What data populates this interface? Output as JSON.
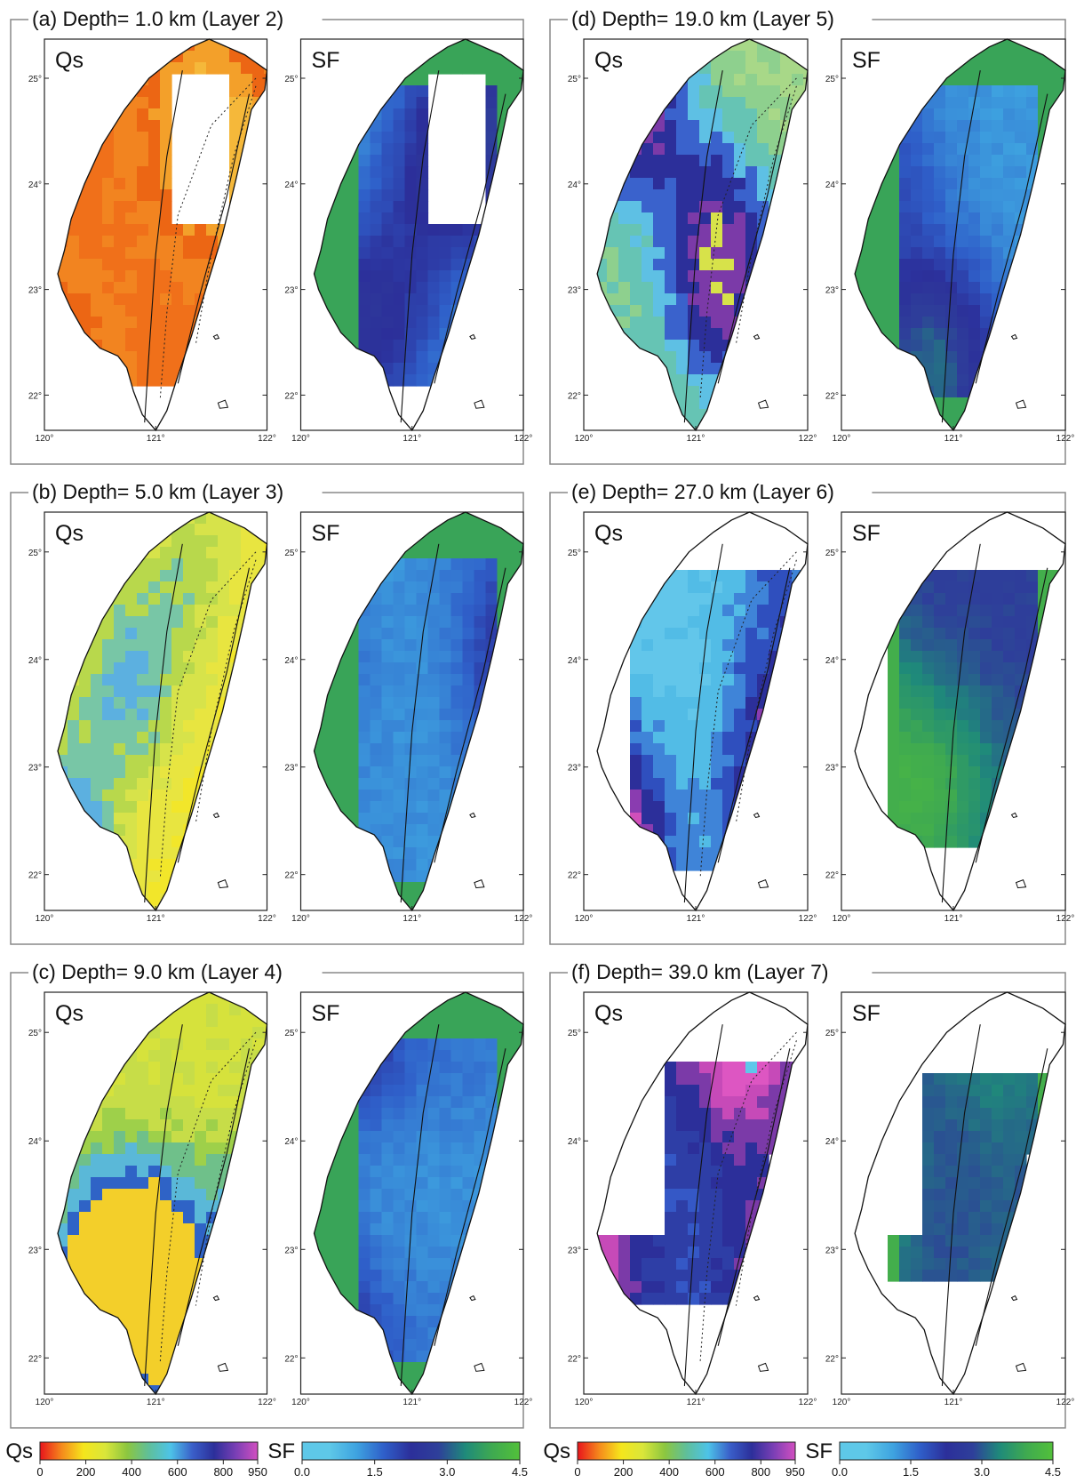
{
  "panels": [
    {
      "id": "a",
      "title": "(a) Depth= 1.0 km (Layer 2)",
      "qs_theme": "orange",
      "sf_theme": "a",
      "qs_label": "Qs",
      "sf_label": "SF",
      "lon_ticks": [
        "120°",
        "121°",
        "122°"
      ],
      "lat_ticks": [
        "25°",
        "24°",
        "23°",
        "22°"
      ]
    },
    {
      "id": "b",
      "title": "(b) Depth= 5.0 km (Layer 3)",
      "qs_theme": "yellow",
      "sf_theme": "b",
      "qs_label": "Qs",
      "sf_label": "SF",
      "lon_ticks": [
        "120°",
        "121°",
        "122°"
      ],
      "lat_ticks": [
        "25°",
        "24°",
        "23°",
        "22°"
      ]
    },
    {
      "id": "c",
      "title": "(c) Depth= 9.0 km (Layer 4)",
      "qs_theme": "green",
      "sf_theme": "c",
      "qs_label": "Qs",
      "sf_label": "SF",
      "lon_ticks": [
        "120°",
        "121°",
        "122°"
      ],
      "lat_ticks": [
        "25°",
        "24°",
        "23°",
        "22°"
      ]
    },
    {
      "id": "d",
      "title": "(d) Depth= 19.0 km (Layer 5)",
      "qs_theme": "bluegreen",
      "sf_theme": "d",
      "qs_label": "Qs",
      "sf_label": "SF",
      "lon_ticks": [
        "120°",
        "121°",
        "122°"
      ],
      "lat_ticks": [
        "25°",
        "24°",
        "23°",
        "22°"
      ]
    },
    {
      "id": "e",
      "title": "(e) Depth= 27.0 km (Layer 6)",
      "qs_theme": "cyanmag",
      "sf_theme": "e",
      "qs_label": "Qs",
      "sf_label": "SF",
      "lon_ticks": [
        "120°",
        "121°",
        "122°"
      ],
      "lat_ticks": [
        "25°",
        "24°",
        "23°",
        "22°"
      ]
    },
    {
      "id": "f",
      "title": "(f) Depth= 39.0 km (Layer 7)",
      "qs_theme": "bluemag",
      "sf_theme": "f",
      "qs_label": "Qs",
      "sf_label": "SF",
      "lon_ticks": [
        "120°",
        "121°",
        "122°"
      ],
      "lat_ticks": [
        "25°",
        "24°",
        "23°",
        "22°"
      ]
    }
  ],
  "colorbars": [
    {
      "title": "Qs",
      "type": "qs",
      "ticks": [
        "0",
        "200",
        "400",
        "600",
        "800",
        "950"
      ]
    },
    {
      "title": "SF",
      "type": "sf",
      "ticks": [
        "0.0",
        "1.5",
        "3.0",
        "4.5"
      ]
    },
    {
      "title": "Qs",
      "type": "qs",
      "ticks": [
        "0",
        "200",
        "400",
        "600",
        "800",
        "950"
      ]
    },
    {
      "title": "SF",
      "type": "sf",
      "ticks": [
        "0.0",
        "1.5",
        "3.0",
        "4.5"
      ]
    }
  ],
  "qs_scale": {
    "min": 0,
    "max": 950,
    "stops": [
      "#e8141c",
      "#f58a1c",
      "#f5e61c",
      "#d9e63a",
      "#8cc63f",
      "#5fbf9a",
      "#4dc3e8",
      "#3a5fc9",
      "#2c2f9a",
      "#7a3fb5",
      "#d24fc0"
    ]
  },
  "sf_scale": {
    "min": 0.0,
    "max": 4.5,
    "stops": [
      "#5ec8e8",
      "#5ec8e8",
      "#3ea3e0",
      "#2f5fc9",
      "#2c2f9a",
      "#2e3f9a",
      "#1f8a7a",
      "#3faa50",
      "#52c03a"
    ]
  },
  "theme_colors": {
    "orange": [
      "#f0701a",
      "#f28420",
      "#ec6614",
      "#f3a02a",
      "#f5b83a"
    ],
    "yellow": [
      "#f2e62a",
      "#e8e540",
      "#d7e34a",
      "#b8d84c",
      "#78c6a6",
      "#5cb0e0"
    ],
    "green": [
      "#d6e23c",
      "#c7dd48",
      "#9ed04a",
      "#6fc08a",
      "#5ab8d8",
      "#2f63c6",
      "#f3cf2a"
    ],
    "bluegreen": [
      "#a8d888",
      "#8ed08e",
      "#66c4b4",
      "#5ec0e4",
      "#3a62cc",
      "#2c2f9a",
      "#7b3aa8",
      "#d7e24a"
    ],
    "cyanmag": [
      "#62c6ea",
      "#52bce6",
      "#3f84d8",
      "#2f4fbe",
      "#2c2f9a",
      "#8a3cb0",
      "#d04fba"
    ],
    "bluemag": [
      "#3558c6",
      "#2e3ea6",
      "#2c2f9a",
      "#7b3aa8",
      "#c64ab8",
      "#dd56c2",
      "#5ec8ea"
    ]
  }
}
